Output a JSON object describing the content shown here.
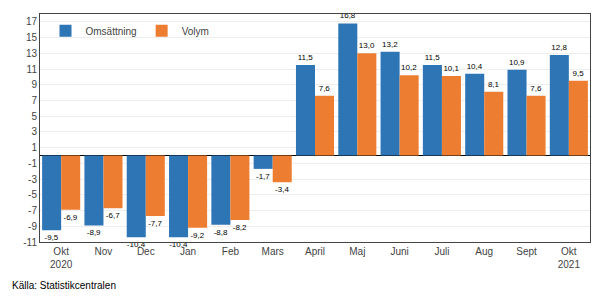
{
  "chart_data": {
    "type": "bar",
    "categories": [
      "Okt\n2020",
      "Nov",
      "Dec",
      "Jan",
      "Feb",
      "Mars",
      "April",
      "Maj",
      "Juni",
      "Juli",
      "Aug",
      "Sept",
      "Okt\n2021"
    ],
    "series": [
      {
        "name": "Omsättning",
        "color": "#2E75B6",
        "values": [
          -9.5,
          -8.9,
          -10.4,
          -10.4,
          -8.8,
          -1.7,
          11.5,
          16.8,
          13.2,
          11.5,
          10.4,
          10.9,
          12.8
        ],
        "value_labels": [
          "-9,5",
          "-8,9",
          "-10,4",
          "-10,4",
          "-8,8",
          "-1,7",
          "11,5",
          "16,8",
          "13,2",
          "11,5",
          "10,4",
          "10,9",
          "12,8"
        ]
      },
      {
        "name": "Volym",
        "color": "#ED7D31",
        "values": [
          -6.9,
          -6.7,
          -7.7,
          -9.2,
          -8.2,
          -3.4,
          7.6,
          13.0,
          10.2,
          10.1,
          8.1,
          7.6,
          9.5
        ],
        "value_labels": [
          "-6,9",
          "-6,7",
          "-7,7",
          "-9,2",
          "-8,2",
          "-3,4",
          "7,6",
          "13,0",
          "10,2",
          "10,1",
          "8,1",
          "7,6",
          "9,5"
        ]
      }
    ],
    "ylim": [
      -11,
      18
    ],
    "yticks": [
      -11,
      -9,
      -7,
      -5,
      -3,
      -1,
      1,
      3,
      5,
      7,
      9,
      11,
      13,
      15,
      17
    ],
    "grid": true,
    "legend": "upper left",
    "data_labels": true,
    "annotations": [
      "Källa: Statistikcentralen"
    ]
  }
}
